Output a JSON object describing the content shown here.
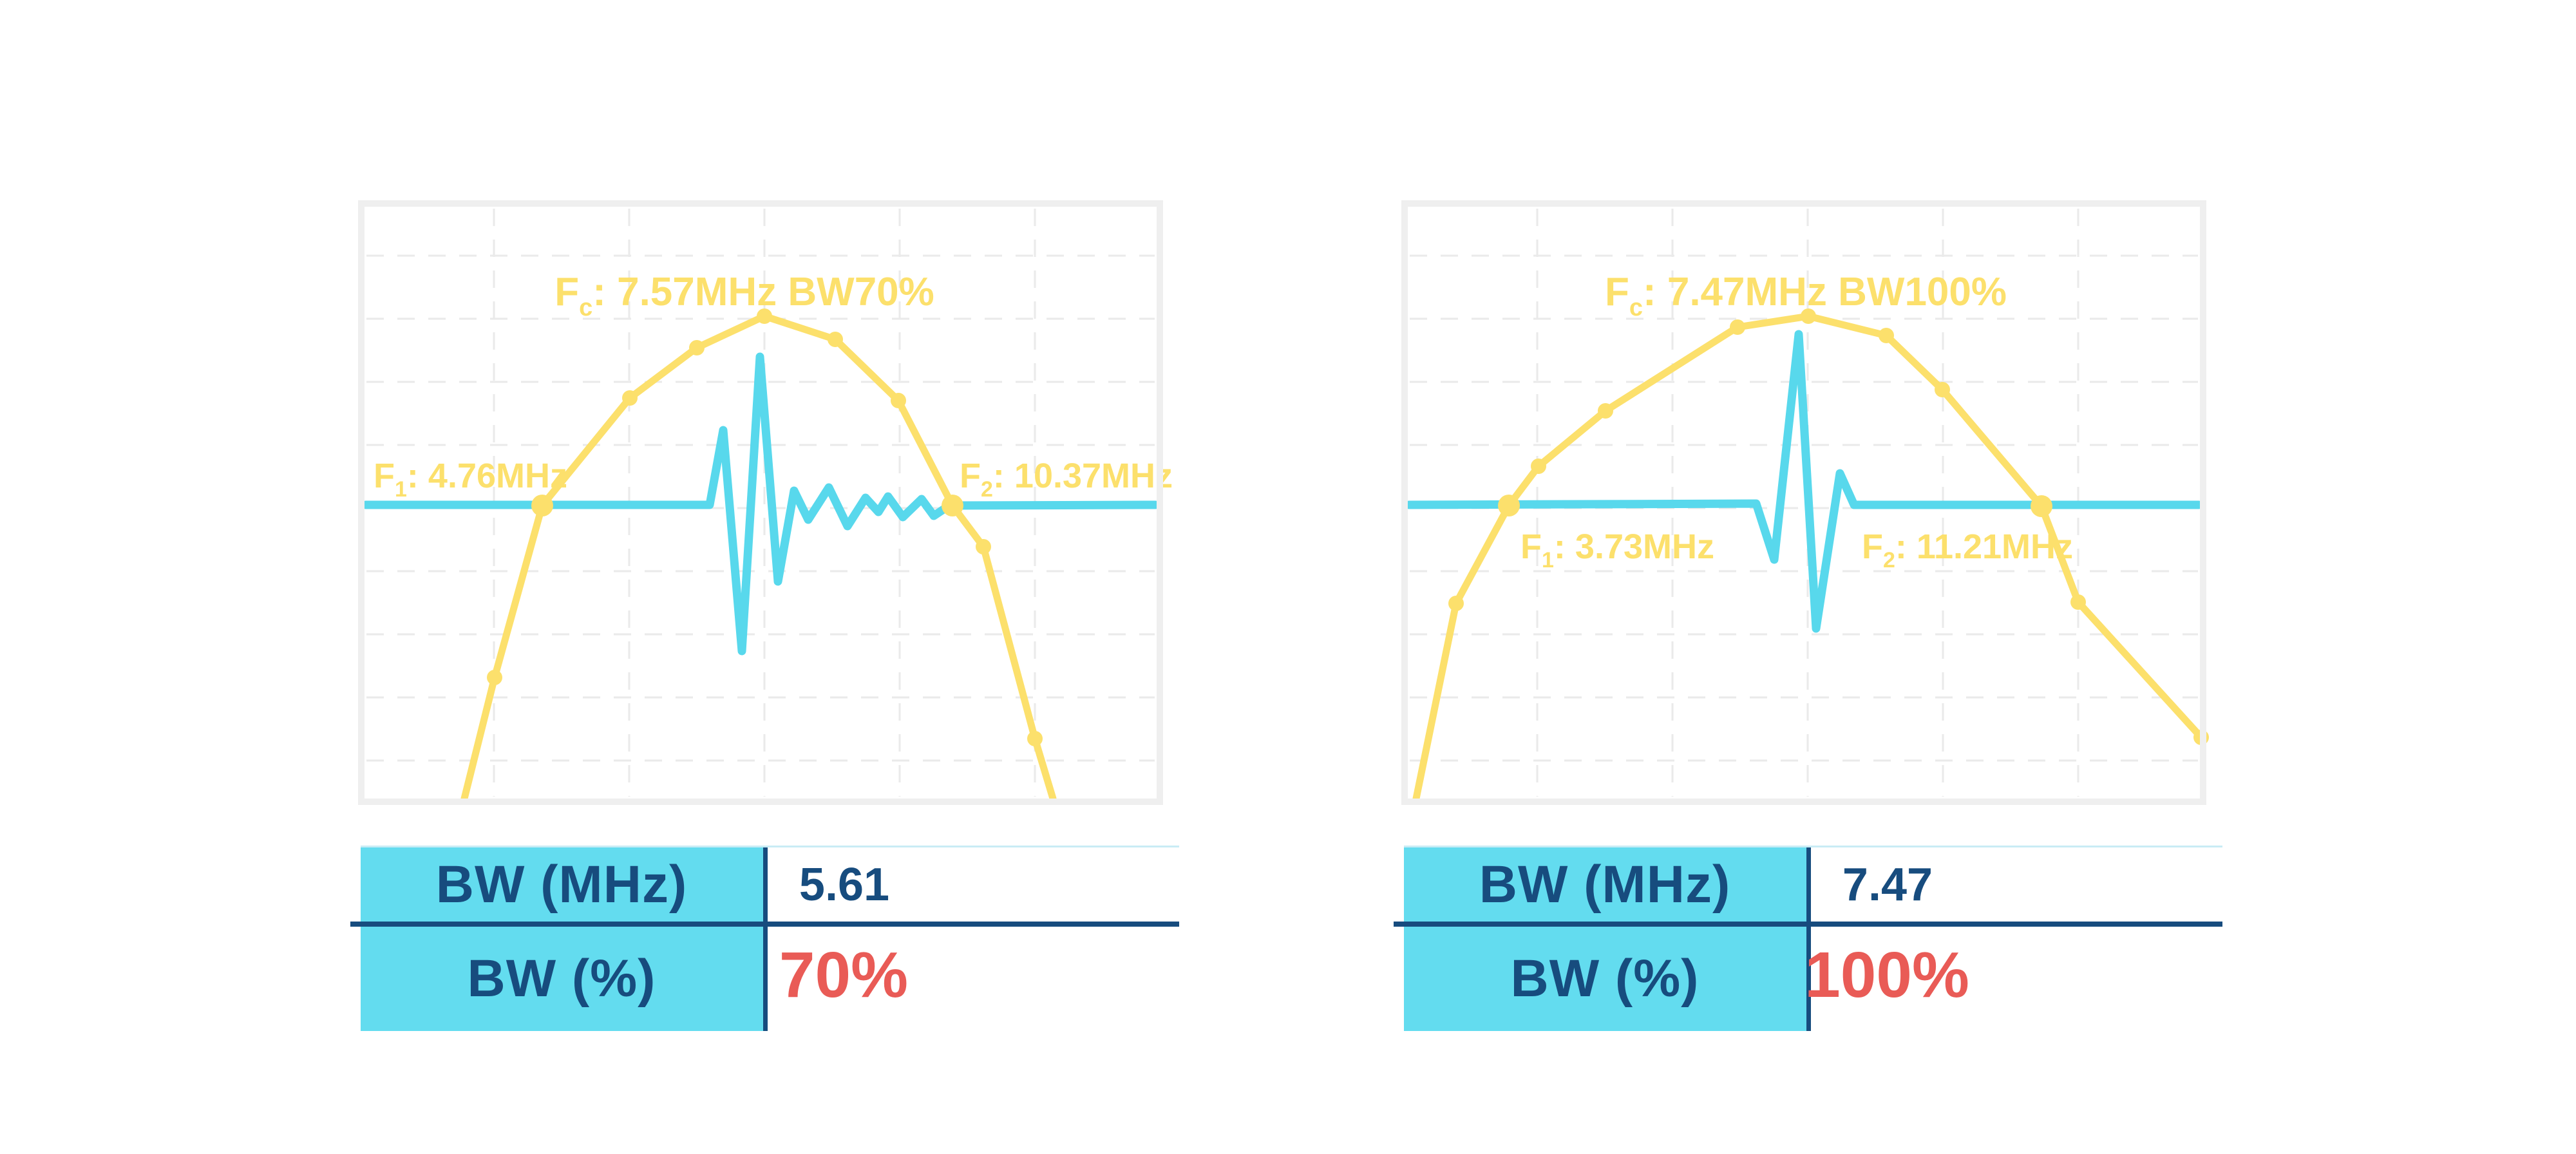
{
  "colors": {
    "yellow": "#FCE06C",
    "cyan": "#58D8EC",
    "table-cyan": "#63DCEF",
    "navy": "#174C7E",
    "red": "#E95B56",
    "border": "#EFEFEF",
    "grid": "#EAEAEA",
    "topline": "#C9ECF5",
    "background": "#FFFFFF"
  },
  "charts": [
    {
      "name": "bandwidth-70-percent",
      "ann": {
        "fc_f": "F",
        "fc_sub": "c",
        "fc_rest": ": 7.57MHz BW70%",
        "f1_f": "F",
        "f1_sub": "1",
        "f1_rest": ": 4.76MHz",
        "f2_f": "F",
        "f2_sub": "2",
        "f2_rest": ": 10.37MHz"
      },
      "table": {
        "rows": [
          {
            "label": "BW (MHz)",
            "value": "5.61"
          },
          {
            "label": "BW (%)",
            "value": "70%"
          }
        ]
      },
      "render": {
        "spectrum": [
          [
            165,
            929
          ],
          [
            212,
            741
          ],
          [
            286,
            474
          ],
          [
            422,
            307
          ],
          [
            526,
            229
          ],
          [
            631,
            180
          ],
          [
            741,
            216
          ],
          [
            839,
            311
          ],
          [
            923,
            474
          ],
          [
            971,
            538
          ],
          [
            1051,
            836
          ],
          [
            1079,
            929
          ]
        ],
        "markers_small": [
          1,
          3,
          4,
          5,
          6,
          7,
          9,
          10
        ],
        "markers_big": [
          2,
          8
        ],
        "pulse": [
          [
            12,
            473
          ],
          [
            546,
            473
          ],
          [
            567,
            357
          ],
          [
            596,
            700
          ],
          [
            624,
            243
          ],
          [
            652,
            592
          ],
          [
            677,
            451
          ],
          [
            699,
            496
          ],
          [
            731,
            446
          ],
          [
            760,
            506
          ],
          [
            788,
            462
          ],
          [
            808,
            484
          ],
          [
            823,
            460
          ],
          [
            846,
            492
          ],
          [
            875,
            464
          ],
          [
            894,
            490
          ],
          [
            918,
            474
          ],
          [
            1238,
            473
          ]
        ]
      }
    },
    {
      "name": "bandwidth-100-percent",
      "ann": {
        "fc_f": "F",
        "fc_sub": "c",
        "fc_rest": ": 7.47MHz BW100%",
        "f1_f": "F",
        "f1_sub": "1",
        "f1_rest": ": 3.73MHz",
        "f2_f": "F",
        "f2_sub": "2",
        "f2_rest": ": 11.21MHz"
      },
      "table": {
        "rows": [
          {
            "label": "BW (MHz)",
            "value": "7.47"
          },
          {
            "label": "BW (%)",
            "value": "100%"
          }
        ]
      },
      "render": {
        "spectrum": [
          [
            23,
            929
          ],
          [
            85,
            626
          ],
          [
            167,
            474
          ],
          [
            213,
            413
          ],
          [
            317,
            327
          ],
          [
            522,
            197
          ],
          [
            632,
            180
          ],
          [
            753,
            210
          ],
          [
            840,
            294
          ],
          [
            994,
            475
          ],
          [
            1051,
            624
          ],
          [
            1242,
            834
          ]
        ],
        "markers_small": [
          1,
          3,
          4,
          5,
          6,
          7,
          8,
          10,
          11
        ],
        "markers_big": [
          2,
          9
        ],
        "pulse": [
          [
            12,
            473
          ],
          [
            551,
            471
          ],
          [
            579,
            558
          ],
          [
            617,
            208
          ],
          [
            644,
            665
          ],
          [
            681,
            424
          ],
          [
            703,
            473
          ],
          [
            1238,
            473
          ]
        ]
      }
    }
  ],
  "chart_data": [
    {
      "type": "line",
      "title": "Fc: 7.57MHz BW70%",
      "xlabel": "frequency (axis unlabeled)",
      "ylabel": "amplitude (axis unlabeled)",
      "grid": true,
      "legend": false,
      "annotations": [
        "Fc: 7.57MHz BW70%",
        "F1: 4.76MHz",
        "F2: 10.37MHz"
      ],
      "f1_mhz": 4.76,
      "fc_mhz": 7.57,
      "f2_mhz": 10.37,
      "bw_mhz": 5.61,
      "bw_pct": 70,
      "series": [
        {
          "name": "frequency spectrum",
          "style": "yellow line with dot markers; large dots at F1 and F2 crossings of the baseline",
          "points_mhz_amp_approx": [
            [
              3.69,
              0.0
            ],
            [
              4.11,
              0.2
            ],
            [
              4.76,
              0.49
            ],
            [
              5.96,
              0.68
            ],
            [
              6.87,
              0.76
            ],
            [
              7.8,
              0.82
            ],
            [
              8.77,
              0.78
            ],
            [
              9.63,
              0.68
            ],
            [
              10.37,
              0.49
            ],
            [
              10.79,
              0.43
            ],
            [
              11.5,
              0.1
            ],
            [
              11.74,
              0.0
            ]
          ]
        },
        {
          "name": "pulse-echo waveform",
          "style": "cyan trace on horizontal baseline at mid-height; broadband pulse with long decaying ringing tail between F1 and F2"
        }
      ],
      "table": {
        "BW (MHz)": 5.61,
        "BW (%)": "70%"
      }
    },
    {
      "type": "line",
      "title": "Fc: 7.47MHz BW100%",
      "xlabel": "frequency (axis unlabeled)",
      "ylabel": "amplitude (axis unlabeled)",
      "grid": true,
      "legend": false,
      "annotations": [
        "Fc: 7.47MHz BW100%",
        "F1: 3.73MHz",
        "F2: 11.21MHz"
      ],
      "f1_mhz": 3.73,
      "fc_mhz": 7.47,
      "f2_mhz": 11.21,
      "bw_mhz": 7.47,
      "bw_pct": 100,
      "series": [
        {
          "name": "frequency spectrum",
          "style": "yellow line with dot markers; large dots at F1 and F2 crossings of the baseline; curve ends with marker at right plot edge",
          "points_mhz_amp_approx": [
            [
              2.43,
              0.0
            ],
            [
              2.99,
              0.33
            ],
            [
              3.73,
              0.49
            ],
            [
              4.15,
              0.56
            ],
            [
              5.09,
              0.66
            ],
            [
              6.94,
              0.8
            ],
            [
              7.94,
              0.82
            ],
            [
              9.03,
              0.79
            ],
            [
              9.82,
              0.7
            ],
            [
              11.21,
              0.49
            ],
            [
              11.73,
              0.33
            ],
            [
              13.45,
              0.1
            ]
          ]
        },
        {
          "name": "pulse-echo waveform",
          "style": "cyan trace on horizontal baseline at mid-height; short pulse (~1.5 cycles), taller main peak, no ringing tail"
        }
      ],
      "table": {
        "BW (MHz)": 7.47,
        "BW (%)": "100%"
      }
    }
  ]
}
